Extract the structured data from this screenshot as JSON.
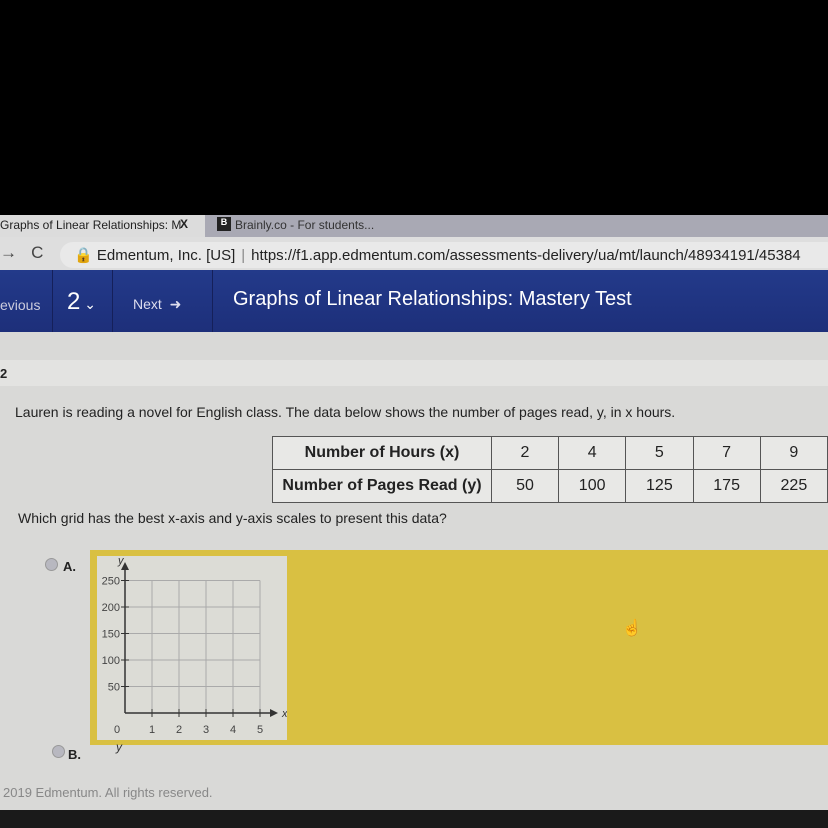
{
  "browser": {
    "tabs": [
      {
        "label": "Graphs of Linear Relationships: M",
        "close": "X"
      },
      {
        "icon": "B",
        "label": "Brainly.co - For students..."
      }
    ],
    "site_identity": "Edmentum, Inc. [US]",
    "url": "https://f1.app.edmentum.com/assessments-delivery/ua/mt/launch/48934191/45384"
  },
  "nav": {
    "previous": "evious",
    "question_number": "2",
    "next": "Next",
    "title": "Graphs of Linear Relationships: Mastery Test"
  },
  "question": {
    "number": "2",
    "prompt": "Lauren is reading a novel for English class. The data below shows the number of pages read, y, in x hours.",
    "table": {
      "rows": [
        {
          "header": "Number of Hours (x)",
          "values": [
            "2",
            "4",
            "5",
            "7",
            "9"
          ]
        },
        {
          "header": "Number of Pages Read (y)",
          "values": [
            "50",
            "100",
            "125",
            "175",
            "225"
          ]
        }
      ]
    },
    "ask": "Which grid has the best x-axis and y-axis scales to present this data?",
    "options": [
      {
        "label": "A.",
        "graph": {
          "y_label": "y",
          "x_label": "x",
          "y_ticks": [
            "250",
            "200",
            "150",
            "100",
            "50"
          ],
          "x_ticks": [
            "0",
            "1",
            "2",
            "3",
            "4",
            "5"
          ]
        }
      },
      {
        "label": "B.",
        "graph": {
          "y_label": "y"
        }
      }
    ]
  },
  "footer": "2019 Edmentum. All rights reserved."
}
